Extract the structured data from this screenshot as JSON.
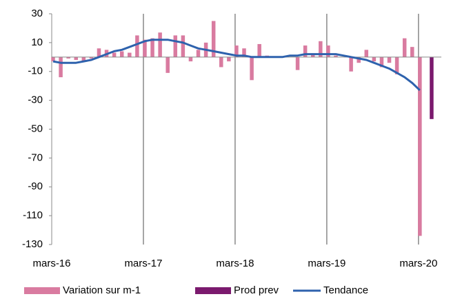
{
  "chart_data": {
    "type": "bar_line",
    "categories": [
      "mars-16",
      null,
      null,
      null,
      null,
      null,
      null,
      null,
      null,
      null,
      null,
      null,
      "mars-17",
      null,
      null,
      null,
      null,
      null,
      null,
      null,
      null,
      null,
      null,
      null,
      "mars-18",
      null,
      null,
      null,
      null,
      null,
      null,
      null,
      null,
      null,
      null,
      null,
      "mars-19",
      null,
      null,
      null,
      null,
      null,
      null,
      null,
      null,
      null,
      null,
      null,
      "mars-20",
      null
    ],
    "series": [
      {
        "name": "Variation sur m-1",
        "kind": "bar",
        "color": "#d97ba0",
        "values": [
          -3,
          -14,
          -1,
          -2,
          -3,
          -1,
          6,
          5,
          3,
          4,
          3,
          15,
          12,
          13,
          17,
          -11,
          15,
          15,
          -3,
          5,
          10,
          25,
          -7,
          -3,
          8,
          6,
          -16,
          9,
          1,
          0,
          0,
          0,
          -9,
          8,
          2,
          11,
          8,
          1,
          0,
          -10,
          -4,
          5,
          -3,
          -7,
          -4,
          -12,
          13,
          7,
          -124,
          null
        ]
      },
      {
        "name": "Prod prev",
        "kind": "bar",
        "color": "#7b1a6e",
        "values": [
          null,
          null,
          null,
          null,
          null,
          null,
          null,
          null,
          null,
          null,
          null,
          null,
          null,
          null,
          null,
          null,
          null,
          null,
          null,
          null,
          null,
          null,
          null,
          null,
          null,
          null,
          null,
          null,
          null,
          null,
          null,
          null,
          null,
          null,
          null,
          null,
          null,
          null,
          null,
          null,
          null,
          null,
          null,
          null,
          null,
          null,
          null,
          null,
          null,
          -43
        ]
      },
      {
        "name": "Tendance",
        "kind": "line",
        "color": "#2e62ad",
        "values": [
          -3,
          -4,
          -4,
          -4,
          -3,
          -2,
          0,
          2,
          4,
          5,
          7,
          9,
          11,
          12,
          12,
          12,
          11,
          10,
          8,
          6,
          5,
          4,
          3,
          2,
          1,
          1,
          0,
          0,
          0,
          0,
          0,
          1,
          1,
          2,
          2,
          2,
          2,
          2,
          1,
          0,
          -1,
          -2,
          -4,
          -6,
          -8,
          -11,
          -14,
          -18,
          -23,
          null
        ]
      }
    ],
    "ylim": [
      -130,
      30
    ],
    "yticks": [
      30,
      10,
      -10,
      -30,
      -50,
      -70,
      -90,
      -110,
      -130
    ],
    "x_grid": true,
    "legend": "bottom"
  }
}
